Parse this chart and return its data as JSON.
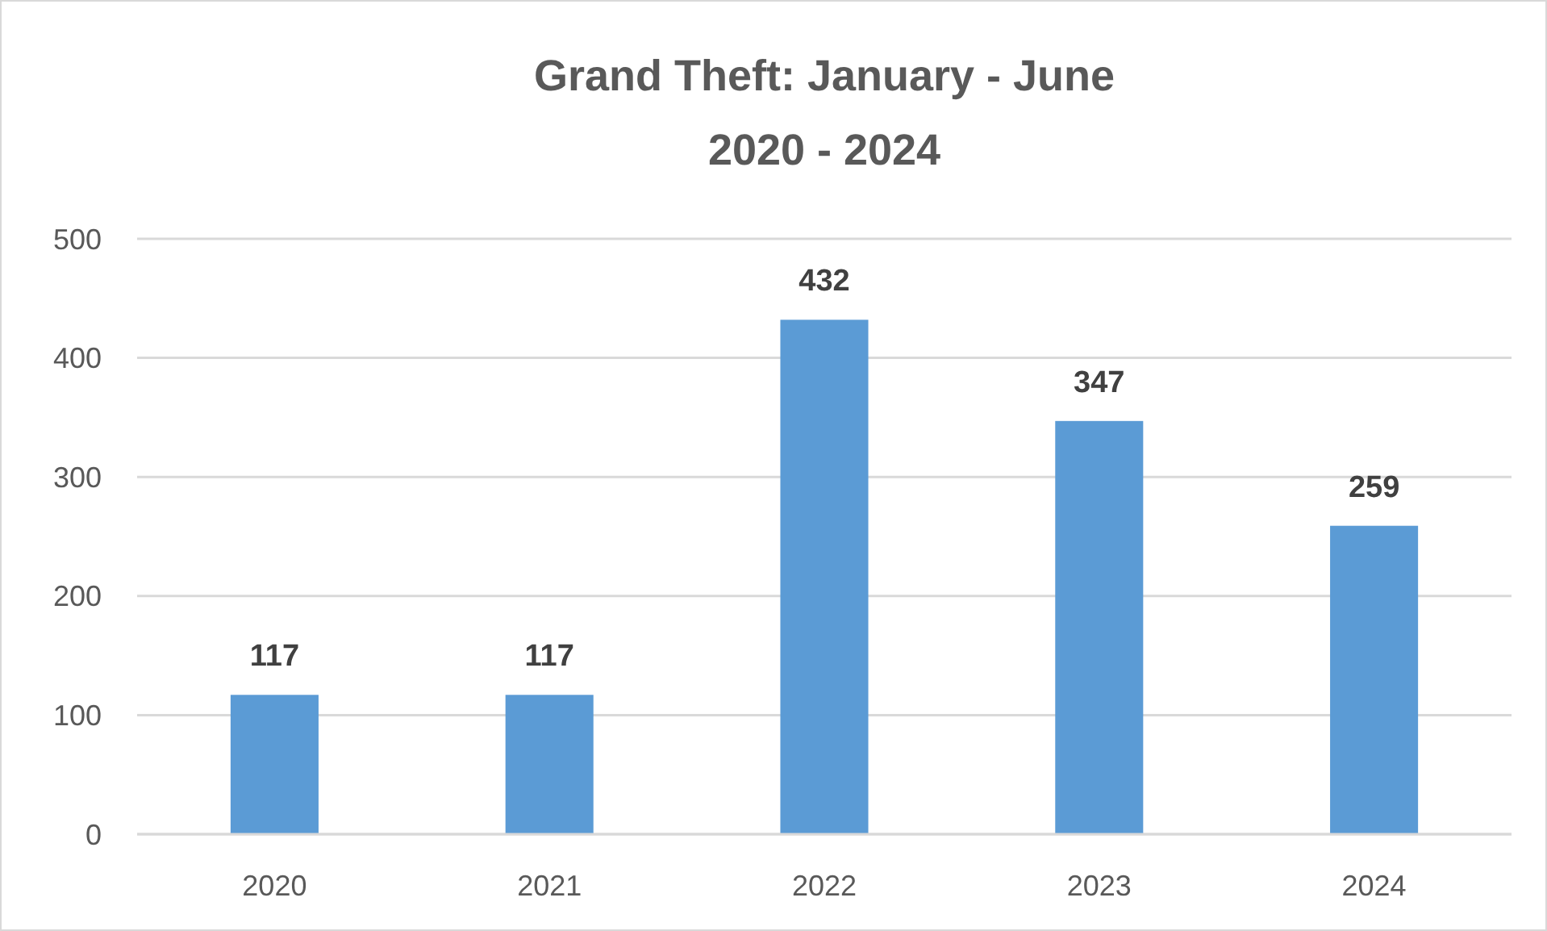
{
  "chart_data": {
    "type": "bar",
    "title": "Grand Theft: January - June",
    "subtitle": "2020 - 2024",
    "categories": [
      "2020",
      "2021",
      "2022",
      "2023",
      "2024"
    ],
    "values": [
      117,
      117,
      432,
      347,
      259
    ],
    "color": "#5b9bd5",
    "ylim": [
      0,
      500
    ],
    "yticks": [
      0,
      100,
      200,
      300,
      400,
      500
    ],
    "grid": "y",
    "data_labels": true
  }
}
